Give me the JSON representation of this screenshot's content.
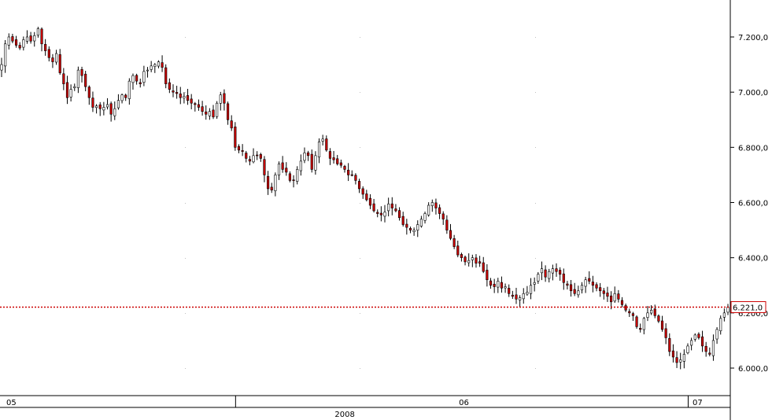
{
  "colors": {
    "background": "#ffffff",
    "axis": "#000000",
    "grid_dot": "#c0c0c0",
    "wick": "#000000",
    "up_fill": "#ffffff",
    "down_fill": "#cc0000",
    "price_line": "#cc0000",
    "price_label_bg": "#ffffff",
    "price_label_border": "#cc0000"
  },
  "chart_data": {
    "type": "candlestick",
    "ylim": [
      5920,
      7320
    ],
    "y_ticks": [
      {
        "value": 7200,
        "label": "7.200,0"
      },
      {
        "value": 7000,
        "label": "7.000,0"
      },
      {
        "value": 6800,
        "label": "6.800,0"
      },
      {
        "value": 6600,
        "label": "6.600,0"
      },
      {
        "value": 6400,
        "label": "6.400,0"
      },
      {
        "value": 6200,
        "label": "6.200,0"
      },
      {
        "value": 6000,
        "label": "6.000,0"
      }
    ],
    "x_labels": [
      {
        "label": "05",
        "index": 0
      },
      {
        "label": "06",
        "index": 124
      },
      {
        "label": "07",
        "index": 188
      }
    ],
    "year_label": {
      "label": "2008",
      "index": 90
    },
    "separators": [
      64,
      188
    ],
    "current_price": {
      "value": 6221,
      "label": "6.221,0"
    },
    "closes": [
      7100,
      7175,
      7200,
      7185,
      7170,
      7160,
      7190,
      7200,
      7185,
      7205,
      7230,
      7175,
      7150,
      7125,
      7110,
      7140,
      7070,
      7030,
      6980,
      7010,
      7020,
      7080,
      7060,
      7020,
      6980,
      6945,
      6950,
      6940,
      6945,
      6955,
      6920,
      6940,
      6970,
      6990,
      6980,
      7040,
      7060,
      7040,
      7030,
      7075,
      7080,
      7095,
      7100,
      7110,
      7090,
      7030,
      7010,
      7000,
      6995,
      6980,
      6985,
      6970,
      6960,
      6955,
      6945,
      6930,
      6920,
      6930,
      6910,
      6960,
      6990,
      6960,
      6900,
      6870,
      6800,
      6790,
      6785,
      6760,
      6750,
      6770,
      6770,
      6760,
      6700,
      6650,
      6645,
      6700,
      6740,
      6720,
      6710,
      6680,
      6680,
      6720,
      6750,
      6780,
      6770,
      6720,
      6770,
      6820,
      6830,
      6790,
      6760,
      6755,
      6740,
      6735,
      6720,
      6700,
      6700,
      6680,
      6650,
      6630,
      6610,
      6590,
      6570,
      6560,
      6555,
      6565,
      6595,
      6580,
      6570,
      6545,
      6520,
      6510,
      6500,
      6500,
      6520,
      6540,
      6560,
      6590,
      6600,
      6580,
      6560,
      6540,
      6500,
      6470,
      6440,
      6410,
      6400,
      6385,
      6390,
      6400,
      6380,
      6380,
      6350,
      6320,
      6300,
      6295,
      6315,
      6290,
      6295,
      6270,
      6260,
      6250,
      6255,
      6270,
      6275,
      6300,
      6310,
      6340,
      6360,
      6330,
      6350,
      6360,
      6350,
      6340,
      6310,
      6300,
      6280,
      6270,
      6280,
      6300,
      6320,
      6315,
      6300,
      6290,
      6280,
      6270,
      6260,
      6240,
      6270,
      6250,
      6230,
      6210,
      6200,
      6190,
      6150,
      6140,
      6180,
      6200,
      6210,
      6190,
      6170,
      6140,
      6110,
      6060,
      6040,
      6020,
      6030,
      6050,
      6080,
      6100,
      6120,
      6110,
      6080,
      6060,
      6050,
      6100,
      6140,
      6180,
      6200,
      6221
    ]
  }
}
